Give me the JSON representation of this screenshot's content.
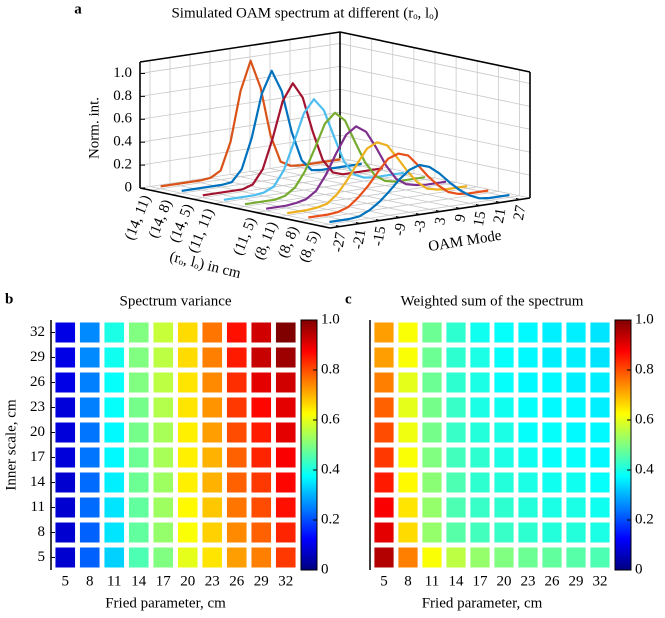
{
  "chart_data": [
    {
      "type": "line3d",
      "panel_label": "a",
      "title": "Simulated OAM spectrum at different (rₒ, lₒ)",
      "xlabel": "OAM Mode",
      "ylabel": "(rₒ, lₒ) in cm",
      "zlabel": "Norm. int.",
      "categories": [
        "(14, 11)",
        "(14, 8)",
        "(14, 5)",
        "(11, 11)",
        null,
        "(11, 5)",
        "(8, 11)",
        "(8, 8)",
        "(8, 5)"
      ],
      "x": [
        -27,
        -24,
        -21,
        -18,
        -15,
        -12,
        -9,
        -6,
        -3,
        0,
        3,
        6,
        9,
        12,
        15,
        18,
        21,
        24,
        27
      ],
      "xlim": [
        -30,
        30
      ],
      "xticks": [
        -27,
        -21,
        -15,
        -9,
        -3,
        3,
        9,
        15,
        21,
        27
      ],
      "zlim": [
        0,
        1.1
      ],
      "zticks": [
        0,
        0.2,
        0.4,
        0.6,
        0.8,
        {
          "value": 1,
          "label": "1.0"
        }
      ],
      "grid": true,
      "series": [
        {
          "color": "#D95319",
          "values": [
            0.02,
            0.02,
            0.02,
            0.02,
            0.02,
            0.03,
            0.08,
            0.32,
            0.75,
            1.0,
            0.75,
            0.32,
            0.08,
            0.03,
            0.02,
            0.02,
            0.02,
            0.02,
            0.02
          ]
        },
        {
          "color": "#0072BD",
          "values": [
            0.02,
            0.02,
            0.02,
            0.02,
            0.02,
            0.03,
            0.13,
            0.39,
            0.76,
            0.95,
            0.76,
            0.39,
            0.13,
            0.03,
            0.02,
            0.02,
            0.02,
            0.02,
            0.02
          ]
        },
        {
          "color": "#A2142F",
          "values": [
            0.02,
            0.02,
            0.02,
            0.02,
            0.02,
            0.05,
            0.17,
            0.43,
            0.74,
            0.88,
            0.74,
            0.43,
            0.17,
            0.05,
            0.02,
            0.02,
            0.02,
            0.02,
            0.02
          ]
        },
        {
          "color": "#4DBEEE",
          "values": [
            0.02,
            0.02,
            0.02,
            0.02,
            0.03,
            0.07,
            0.2,
            0.43,
            0.67,
            0.78,
            0.67,
            0.43,
            0.2,
            0.07,
            0.03,
            0.02,
            0.02,
            0.02,
            0.02
          ]
        },
        {
          "color": "#77AC30",
          "values": [
            0.02,
            0.02,
            0.02,
            0.02,
            0.04,
            0.1,
            0.23,
            0.42,
            0.62,
            0.7,
            0.62,
            0.42,
            0.23,
            0.1,
            0.04,
            0.02,
            0.02,
            0.02,
            0.02
          ]
        },
        {
          "color": "#7E2F8E",
          "values": [
            0.02,
            0.02,
            0.02,
            0.03,
            0.05,
            0.11,
            0.24,
            0.41,
            0.56,
            0.62,
            0.56,
            0.41,
            0.24,
            0.11,
            0.05,
            0.03,
            0.02,
            0.02,
            0.02
          ]
        },
        {
          "color": "#EDB120",
          "values": [
            0.02,
            0.02,
            0.02,
            0.03,
            0.05,
            0.12,
            0.23,
            0.36,
            0.48,
            0.52,
            0.48,
            0.36,
            0.23,
            0.12,
            0.05,
            0.03,
            0.02,
            0.02,
            0.02
          ]
        },
        {
          "color": "#E8501A",
          "values": [
            0.02,
            0.02,
            0.02,
            0.03,
            0.06,
            0.13,
            0.22,
            0.33,
            0.43,
            0.46,
            0.43,
            0.33,
            0.22,
            0.13,
            0.06,
            0.03,
            0.02,
            0.02,
            0.02
          ]
        },
        {
          "color": "#0072BD",
          "values": [
            0.02,
            0.02,
            0.02,
            0.03,
            0.07,
            0.13,
            0.21,
            0.3,
            0.37,
            0.4,
            0.37,
            0.3,
            0.21,
            0.13,
            0.07,
            0.03,
            0.02,
            0.02,
            0.02
          ]
        }
      ]
    },
    {
      "type": "heatmap",
      "panel_label": "b",
      "title": "Spectrum variance",
      "xlabel": "Fried parameter, cm",
      "ylabel": "Inner scale, cm",
      "colormap": "jet",
      "x": [
        5,
        8,
        11,
        14,
        17,
        20,
        23,
        26,
        29,
        32
      ],
      "y": [
        5,
        8,
        11,
        14,
        17,
        20,
        23,
        26,
        29,
        32
      ],
      "clim": [
        0,
        1
      ],
      "cticks": [
        0,
        0.2,
        0.4,
        0.6,
        0.8,
        {
          "value": 1,
          "label": "1.0"
        }
      ],
      "values": [
        [
          0.08,
          0.22,
          0.33,
          0.45,
          0.5,
          0.6,
          0.65,
          0.72,
          0.75,
          0.82
        ],
        [
          0.08,
          0.22,
          0.35,
          0.47,
          0.52,
          0.62,
          0.67,
          0.74,
          0.78,
          0.84
        ],
        [
          0.08,
          0.23,
          0.35,
          0.47,
          0.53,
          0.63,
          0.68,
          0.76,
          0.8,
          0.86
        ],
        [
          0.08,
          0.23,
          0.36,
          0.48,
          0.53,
          0.64,
          0.7,
          0.78,
          0.82,
          0.87
        ],
        [
          0.09,
          0.24,
          0.37,
          0.48,
          0.54,
          0.64,
          0.7,
          0.78,
          0.84,
          0.88
        ],
        [
          0.09,
          0.24,
          0.37,
          0.49,
          0.54,
          0.64,
          0.72,
          0.8,
          0.85,
          0.9
        ],
        [
          0.09,
          0.25,
          0.38,
          0.49,
          0.55,
          0.65,
          0.73,
          0.82,
          0.87,
          0.9
        ],
        [
          0.1,
          0.25,
          0.38,
          0.5,
          0.56,
          0.65,
          0.74,
          0.83,
          0.9,
          0.92
        ],
        [
          0.1,
          0.26,
          0.39,
          0.5,
          0.56,
          0.66,
          0.75,
          0.85,
          0.93,
          0.97
        ],
        [
          0.1,
          0.26,
          0.4,
          0.5,
          0.57,
          0.66,
          0.76,
          0.86,
          0.92,
          1.0
        ]
      ]
    },
    {
      "type": "heatmap",
      "panel_label": "c",
      "title": "Weighted sum of the spectrum",
      "xlabel": "Fried parameter, cm",
      "colormap": "jet",
      "x": [
        5,
        8,
        11,
        14,
        17,
        20,
        23,
        26,
        29,
        32
      ],
      "clim": [
        0,
        1
      ],
      "cticks": [
        0,
        0.2,
        0.4,
        0.6,
        0.8,
        {
          "value": 1,
          "label": "1.0"
        }
      ],
      "values": [
        [
          0.95,
          0.75,
          0.62,
          0.56,
          0.52,
          0.5,
          0.48,
          0.47,
          0.46,
          0.45
        ],
        [
          0.9,
          0.66,
          0.52,
          0.46,
          0.44,
          0.43,
          0.42,
          0.41,
          0.41,
          0.4
        ],
        [
          0.88,
          0.65,
          0.52,
          0.45,
          0.43,
          0.42,
          0.41,
          0.4,
          0.4,
          0.39
        ],
        [
          0.85,
          0.63,
          0.51,
          0.45,
          0.42,
          0.41,
          0.4,
          0.39,
          0.39,
          0.38
        ],
        [
          0.82,
          0.62,
          0.5,
          0.44,
          0.42,
          0.4,
          0.39,
          0.38,
          0.38,
          0.37
        ],
        [
          0.8,
          0.61,
          0.49,
          0.43,
          0.41,
          0.4,
          0.38,
          0.38,
          0.37,
          0.37
        ],
        [
          0.78,
          0.6,
          0.49,
          0.43,
          0.4,
          0.39,
          0.38,
          0.37,
          0.37,
          0.36
        ],
        [
          0.75,
          0.6,
          0.48,
          0.42,
          0.4,
          0.38,
          0.37,
          0.37,
          0.36,
          0.36
        ],
        [
          0.72,
          0.62,
          0.48,
          0.42,
          0.4,
          0.38,
          0.37,
          0.36,
          0.36,
          0.35
        ],
        [
          0.72,
          0.62,
          0.48,
          0.42,
          0.39,
          0.38,
          0.37,
          0.36,
          0.36,
          0.35
        ]
      ]
    }
  ]
}
